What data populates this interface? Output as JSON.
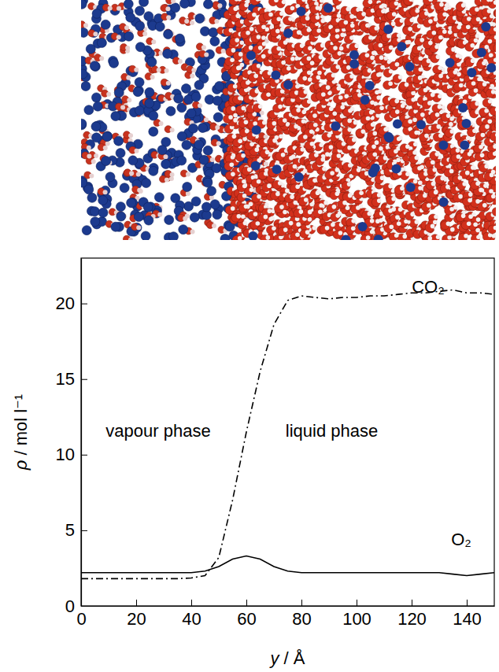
{
  "chart_data": {
    "type": "line",
    "x_label": "y / Å",
    "y_label": "ρ / mol l⁻¹",
    "x": [
      0,
      5,
      10,
      15,
      20,
      25,
      30,
      35,
      40,
      45,
      50,
      55,
      60,
      65,
      70,
      75,
      80,
      85,
      90,
      95,
      100,
      105,
      110,
      115,
      120,
      125,
      130,
      135,
      140,
      145,
      150
    ],
    "series": [
      {
        "name": "CO₂",
        "color": "#000000",
        "line_style": "dashdot",
        "label_x": 126,
        "label_y": 21,
        "values": [
          1.8,
          1.8,
          1.8,
          1.8,
          1.8,
          1.8,
          1.8,
          1.8,
          1.85,
          2.0,
          3.2,
          7.0,
          11.5,
          15.5,
          18.6,
          20.2,
          20.5,
          20.4,
          20.3,
          20.4,
          20.4,
          20.5,
          20.5,
          20.6,
          20.7,
          20.7,
          20.8,
          20.9,
          20.7,
          20.7,
          20.6
        ]
      },
      {
        "name": "O₂",
        "color": "#000000",
        "line_style": "solid",
        "label_x": 138,
        "label_y": 4.3,
        "values": [
          2.2,
          2.2,
          2.2,
          2.2,
          2.2,
          2.2,
          2.2,
          2.2,
          2.2,
          2.3,
          2.6,
          3.1,
          3.3,
          3.1,
          2.6,
          2.3,
          2.2,
          2.2,
          2.2,
          2.2,
          2.2,
          2.2,
          2.2,
          2.2,
          2.2,
          2.2,
          2.2,
          2.1,
          2.0,
          2.1,
          2.2
        ]
      }
    ],
    "annotations": [
      {
        "text": "vapour phase",
        "x": 28,
        "y": 11.5
      },
      {
        "text": "liquid phase",
        "x": 91,
        "y": 11.5
      }
    ],
    "xlim": [
      0,
      150
    ],
    "xticks": [
      0,
      20,
      40,
      60,
      80,
      100,
      120,
      140
    ],
    "ylim": [
      0,
      23
    ],
    "yticks": [
      0,
      5,
      10,
      15,
      20
    ],
    "grid": false
  }
}
